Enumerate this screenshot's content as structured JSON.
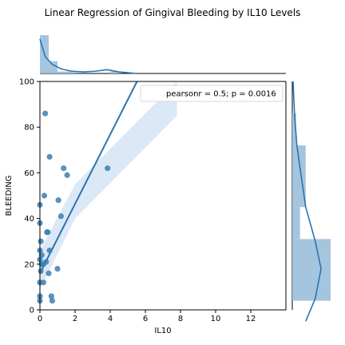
{
  "title": "Linear Regression of Gingival Bleeding by IL10 Levels",
  "legend_text": "pearsonr = 0.5; p = 0.0016",
  "colors": {
    "point": "#3c7fb1",
    "line": "#2a74b0",
    "ci_band": "#cfe0f1",
    "hist": "#9bbfdc",
    "kde": "#2a74b0"
  },
  "chart_data": {
    "type": "scatter",
    "xlabel": "IL10",
    "ylabel": "BLEEDING",
    "xlim": [
      0,
      14
    ],
    "ylim": [
      0,
      100
    ],
    "xticks": [
      0,
      2,
      4,
      6,
      8,
      10,
      12
    ],
    "yticks": [
      0,
      20,
      40,
      60,
      80,
      100
    ],
    "points": [
      {
        "x": 0.0,
        "y": 4
      },
      {
        "x": 0.0,
        "y": 6
      },
      {
        "x": 0.0,
        "y": 12
      },
      {
        "x": 0.05,
        "y": 17
      },
      {
        "x": 0.1,
        "y": 20
      },
      {
        "x": 0.0,
        "y": 22
      },
      {
        "x": 0.1,
        "y": 24
      },
      {
        "x": 0.0,
        "y": 26
      },
      {
        "x": 0.05,
        "y": 30
      },
      {
        "x": 0.0,
        "y": 38
      },
      {
        "x": 0.0,
        "y": 46
      },
      {
        "x": 0.2,
        "y": 12
      },
      {
        "x": 0.2,
        "y": 20
      },
      {
        "x": 0.25,
        "y": 50
      },
      {
        "x": 0.3,
        "y": 86
      },
      {
        "x": 0.35,
        "y": 21
      },
      {
        "x": 0.4,
        "y": 34
      },
      {
        "x": 0.45,
        "y": 34
      },
      {
        "x": 0.5,
        "y": 16
      },
      {
        "x": 0.55,
        "y": 26
      },
      {
        "x": 0.55,
        "y": 67
      },
      {
        "x": 0.65,
        "y": 6
      },
      {
        "x": 0.7,
        "y": 4
      },
      {
        "x": 1.0,
        "y": 18
      },
      {
        "x": 1.05,
        "y": 48
      },
      {
        "x": 1.2,
        "y": 41
      },
      {
        "x": 1.35,
        "y": 62
      },
      {
        "x": 1.55,
        "y": 59
      },
      {
        "x": 3.85,
        "y": 62
      }
    ],
    "regression": {
      "intercept": 16,
      "slope": 15.2
    },
    "ci_band": {
      "upper": [
        [
          0,
          26
        ],
        [
          2,
          55
        ],
        [
          7.8,
          100
        ]
      ],
      "lower": [
        [
          0,
          9
        ],
        [
          2,
          40
        ],
        [
          7.8,
          85
        ]
      ]
    },
    "marginal_x_hist": {
      "bin_edges": [
        0,
        0.5,
        1,
        1.5,
        2,
        2.5,
        3,
        3.5,
        4,
        4.5
      ],
      "density": [
        1.0,
        0.32,
        0.05,
        0.05,
        0.0,
        0.0,
        0.0,
        0.0,
        0.05
      ]
    },
    "marginal_x_kde": {
      "x": [
        0,
        0.3,
        0.7,
        1.2,
        1.8,
        2.5,
        3.2,
        3.8,
        4.5,
        5.5
      ],
      "y": [
        0.45,
        0.22,
        0.12,
        0.06,
        0.03,
        0.02,
        0.03,
        0.05,
        0.02,
        0.0
      ]
    },
    "marginal_y_hist": {
      "bin_edges": [
        4,
        31,
        45,
        72,
        86
      ],
      "density": [
        1.0,
        0.2,
        0.35,
        0.1
      ]
    },
    "marginal_y_kde": {
      "y": [
        -5,
        5,
        18,
        30,
        45,
        60,
        72,
        85,
        100
      ],
      "x": [
        0.35,
        0.6,
        0.75,
        0.6,
        0.35,
        0.22,
        0.12,
        0.06,
        0.02
      ]
    }
  }
}
